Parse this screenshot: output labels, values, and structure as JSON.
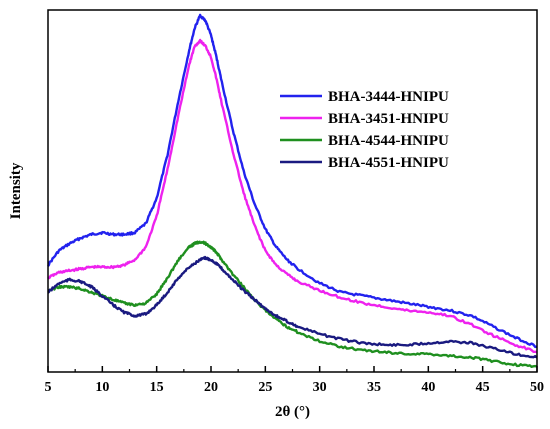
{
  "chart_data": {
    "type": "line",
    "title": "",
    "xlabel": "2θ (°)",
    "ylabel": "Intensity",
    "xlim": [
      5,
      50
    ],
    "ylim": [
      0,
      1
    ],
    "x_ticks": [
      "5",
      "10",
      "15",
      "20",
      "25",
      "30",
      "35",
      "40",
      "45",
      "50"
    ],
    "y_ticks_shown": false,
    "grid": false,
    "legend_position": "top-right",
    "series": [
      {
        "name": "BHA-3444-HNIPU",
        "color": "#2222ee",
        "x": [
          5,
          6,
          7,
          8,
          9,
          10,
          11,
          12,
          13,
          14,
          15,
          16,
          17,
          18,
          18.5,
          19,
          19.5,
          20,
          20.5,
          21,
          22,
          23,
          24,
          25,
          26,
          27,
          28,
          30,
          32,
          34,
          36,
          38,
          40,
          42,
          44,
          46,
          48,
          50
        ],
        "values": [
          0.295,
          0.335,
          0.355,
          0.37,
          0.38,
          0.385,
          0.38,
          0.38,
          0.385,
          0.41,
          0.48,
          0.6,
          0.75,
          0.89,
          0.95,
          0.985,
          0.97,
          0.93,
          0.87,
          0.8,
          0.67,
          0.555,
          0.465,
          0.395,
          0.345,
          0.31,
          0.285,
          0.245,
          0.22,
          0.21,
          0.2,
          0.19,
          0.18,
          0.17,
          0.155,
          0.125,
          0.095,
          0.07
        ]
      },
      {
        "name": "BHA-3451-HNIPU",
        "color": "#ee22ee",
        "x": [
          5,
          6,
          7,
          8,
          9,
          10,
          11,
          12,
          13,
          14,
          15,
          16,
          17,
          18,
          18.5,
          19,
          19.5,
          20,
          20.5,
          21,
          22,
          23,
          24,
          25,
          26,
          27,
          28,
          30,
          32,
          34,
          36,
          38,
          40,
          42,
          44,
          46,
          48,
          50
        ],
        "values": [
          0.26,
          0.275,
          0.28,
          0.285,
          0.29,
          0.29,
          0.29,
          0.295,
          0.31,
          0.345,
          0.43,
          0.56,
          0.71,
          0.85,
          0.9,
          0.915,
          0.9,
          0.87,
          0.81,
          0.74,
          0.61,
          0.495,
          0.405,
          0.335,
          0.295,
          0.27,
          0.25,
          0.225,
          0.205,
          0.19,
          0.18,
          0.17,
          0.165,
          0.155,
          0.13,
          0.1,
          0.075,
          0.055
        ]
      },
      {
        "name": "BHA-4544-HNIPU",
        "color": "#1f8f1f",
        "x": [
          5,
          6,
          7,
          8,
          9,
          10,
          11,
          12,
          13,
          14,
          15,
          16,
          17,
          18,
          18.5,
          19,
          19.5,
          20,
          20.5,
          21,
          22,
          23,
          24,
          25,
          26,
          27,
          28,
          30,
          32,
          34,
          36,
          38,
          40,
          42,
          44,
          46,
          48,
          50
        ],
        "values": [
          0.225,
          0.235,
          0.235,
          0.23,
          0.22,
          0.21,
          0.2,
          0.19,
          0.185,
          0.19,
          0.215,
          0.26,
          0.31,
          0.345,
          0.355,
          0.36,
          0.355,
          0.345,
          0.33,
          0.31,
          0.27,
          0.235,
          0.2,
          0.17,
          0.145,
          0.125,
          0.11,
          0.085,
          0.07,
          0.06,
          0.055,
          0.05,
          0.05,
          0.045,
          0.04,
          0.03,
          0.02,
          0.015
        ]
      },
      {
        "name": "BHA-4551-HNIPU",
        "color": "#1a1a80",
        "x": [
          5,
          6,
          7,
          8,
          9,
          10,
          11,
          12,
          13,
          14,
          15,
          16,
          17,
          18,
          19,
          19.5,
          20,
          20.5,
          21,
          22,
          23,
          24,
          25,
          26,
          27,
          28,
          30,
          32,
          34,
          36,
          38,
          40,
          42,
          44,
          46,
          48,
          50
        ],
        "values": [
          0.22,
          0.245,
          0.255,
          0.25,
          0.235,
          0.21,
          0.185,
          0.165,
          0.155,
          0.16,
          0.185,
          0.22,
          0.26,
          0.29,
          0.31,
          0.315,
          0.31,
          0.3,
          0.285,
          0.255,
          0.225,
          0.2,
          0.175,
          0.155,
          0.14,
          0.125,
          0.105,
          0.09,
          0.08,
          0.075,
          0.075,
          0.08,
          0.085,
          0.08,
          0.065,
          0.05,
          0.04
        ]
      }
    ]
  }
}
